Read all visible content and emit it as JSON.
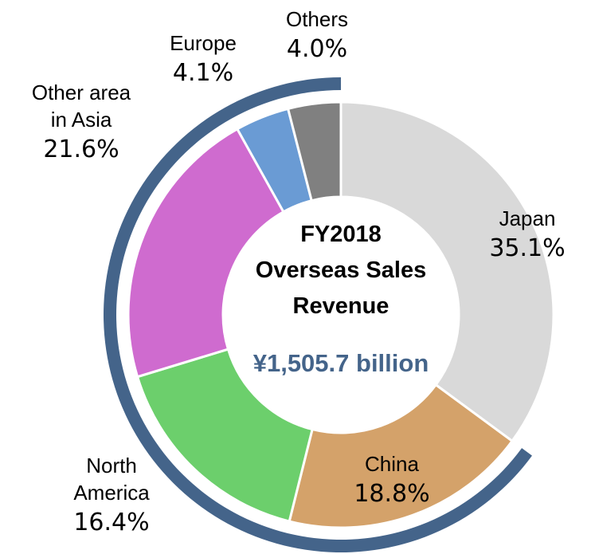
{
  "chart_data": {
    "type": "pie",
    "title": "FY2018\nOverseas Sales\nRevenue",
    "subtitle": "¥1,505.7 billion",
    "categories": [
      "Japan",
      "China",
      "North\nAmerica",
      "Other area\nin Asia",
      "Europe",
      "Others"
    ],
    "values": [
      35.1,
      18.8,
      16.4,
      21.6,
      4.1,
      4.0
    ],
    "value_labels": [
      "35.1%",
      "18.8%",
      "16.4%",
      "21.6%",
      "4.1%",
      "4.0%"
    ],
    "colors": [
      "#d9d9d9",
      "#d4a26a",
      "#6ccf6c",
      "#cf6bcf",
      "#6a9bd4",
      "#808080"
    ]
  }
}
